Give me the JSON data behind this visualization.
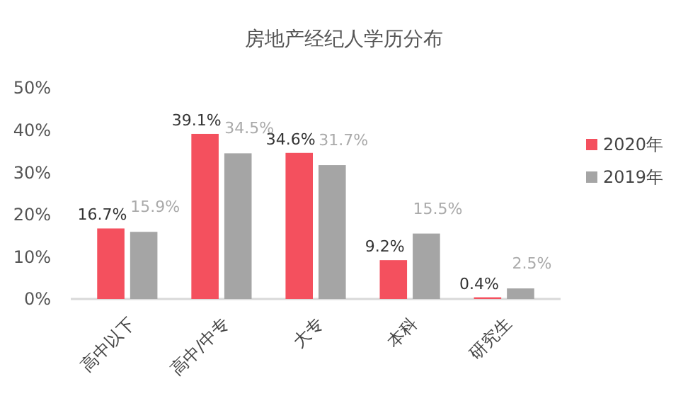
{
  "chart_data": {
    "type": "bar",
    "title": "房地产经纪人学历分布",
    "categories": [
      "高中以下",
      "高中/中专",
      "大专",
      "本科",
      "研究生"
    ],
    "series": [
      {
        "name": "2020年",
        "color": "#f4505e",
        "values": [
          16.7,
          39.1,
          34.6,
          9.2,
          0.4
        ],
        "value_labels": [
          "16.7%",
          "39.1%",
          "34.6%",
          "9.2%",
          "0.4%"
        ]
      },
      {
        "name": "2019年",
        "color": "#a5a5a5",
        "values": [
          15.9,
          34.5,
          31.7,
          15.5,
          2.5
        ],
        "value_labels": [
          "15.9%",
          "34.5%",
          "31.7%",
          "15.5%",
          "2.5%"
        ]
      }
    ],
    "ylim": [
      0,
      50
    ],
    "yticks": [
      {
        "value": 0,
        "label": "0%"
      },
      {
        "value": 10,
        "label": "10%"
      },
      {
        "value": 20,
        "label": "20%"
      },
      {
        "value": 30,
        "label": "30%"
      },
      {
        "value": 40,
        "label": "40%"
      },
      {
        "value": 50,
        "label": "50%"
      }
    ],
    "grid": false,
    "legend": "right"
  }
}
